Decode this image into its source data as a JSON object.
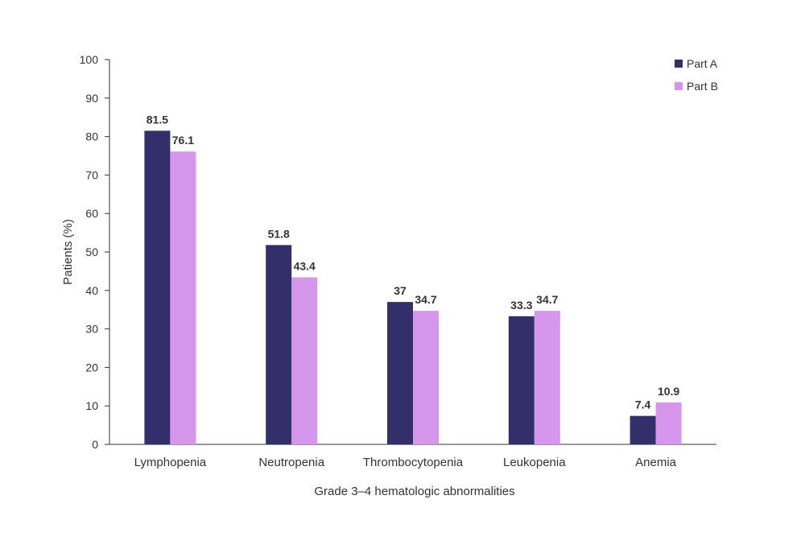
{
  "chart_data": {
    "type": "bar",
    "title": "",
    "xlabel": "Grade 3–4 hematologic abnormalities",
    "ylabel": "Patients (%)",
    "ylim": [
      0,
      100
    ],
    "yticks": [
      0,
      10,
      20,
      30,
      40,
      50,
      60,
      70,
      80,
      90,
      100
    ],
    "categories": [
      "Lymphopenia",
      "Neutropenia",
      "Thrombocytopenia",
      "Leukopenia",
      "Anemia"
    ],
    "series": [
      {
        "name": "Part A",
        "color": "#332f6b",
        "values": [
          81.5,
          51.8,
          37,
          33.3,
          7.4
        ],
        "labels": [
          "81.5",
          "51.8",
          "37",
          "33.3",
          "7.4"
        ]
      },
      {
        "name": "Part B",
        "color": "#d596ec",
        "values": [
          76.1,
          43.4,
          34.7,
          34.7,
          10.9
        ],
        "labels": [
          "76.1",
          "43.4",
          "34.7",
          "34.7",
          "10.9"
        ]
      }
    ],
    "legend": "top-right",
    "grid": false
  }
}
